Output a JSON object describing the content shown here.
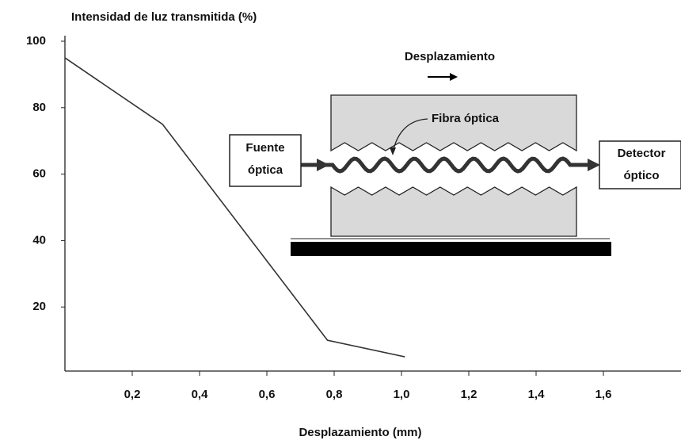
{
  "chart_data": {
    "type": "line",
    "title": "Intensidad de luz transmitida (%)",
    "x_label": "Desplazamiento (mm)",
    "x": [
      0,
      0.29,
      0.78,
      1.01
    ],
    "series": [
      {
        "name": "Intensidad",
        "color": "#333333",
        "values": [
          95,
          75,
          10,
          5
        ]
      }
    ],
    "xlim": [
      0,
      1.84
    ],
    "ylim": [
      0,
      100
    ],
    "xticks": [
      {
        "value": 0.2,
        "label": "0,2"
      },
      {
        "value": 0.4,
        "label": "0,4"
      },
      {
        "value": 0.6,
        "label": "0,6"
      },
      {
        "value": 0.8,
        "label": "0,8"
      },
      {
        "value": 1.0,
        "label": "1,0"
      },
      {
        "value": 1.2,
        "label": "1,2"
      },
      {
        "value": 1.4,
        "label": "1,4"
      },
      {
        "value": 1.6,
        "label": "1,6"
      }
    ],
    "yticks": [
      20,
      40,
      60,
      80,
      100
    ],
    "grid": false,
    "annotations": {
      "displacement": "Desplazamiento",
      "fiber": "Fibra óptica",
      "source": [
        "Fuente",
        "óptica"
      ],
      "detector": [
        "Detector",
        "óptico"
      ]
    }
  }
}
